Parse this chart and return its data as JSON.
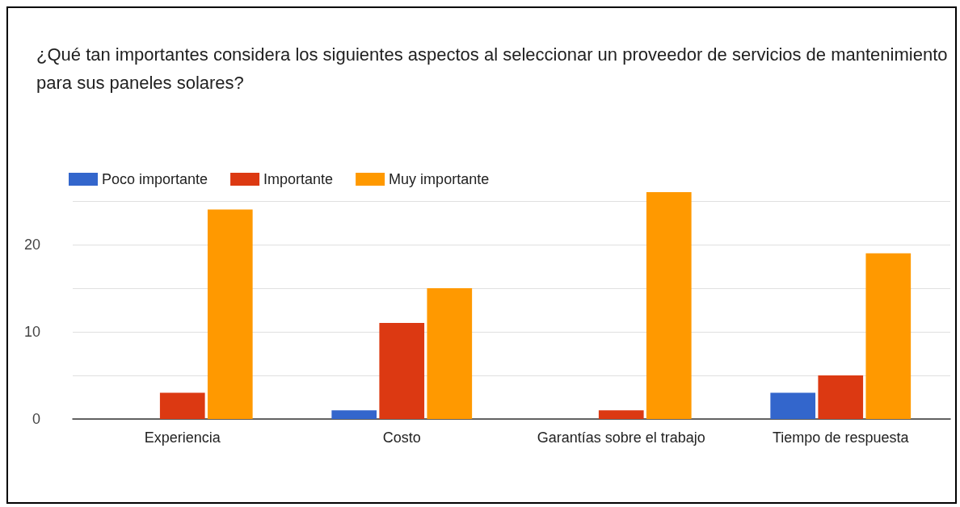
{
  "chart_data": {
    "type": "bar",
    "title": "¿Qué tan importantes considera los siguientes aspectos al seleccionar un proveedor de servicios de mantenimiento para sus paneles solares?",
    "categories": [
      "Experiencia",
      "Costo",
      "Garantías sobre el trabajo",
      "Tiempo de respuesta"
    ],
    "series": [
      {
        "name": "Poco importante",
        "color": "#3366cc",
        "values": [
          0,
          1,
          0,
          3
        ]
      },
      {
        "name": "Importante",
        "color": "#dc3912",
        "values": [
          3,
          11,
          1,
          5
        ]
      },
      {
        "name": "Muy importante",
        "color": "#ff9900",
        "values": [
          24,
          15,
          26,
          19
        ]
      }
    ],
    "ylim": [
      0,
      26
    ],
    "yticks": [
      0,
      {
        "value": 5,
        "label": null
      },
      10,
      {
        "value": 15,
        "label": null
      },
      20,
      {
        "value": 25,
        "label": null
      }
    ],
    "grid": true,
    "legend": "top left"
  }
}
